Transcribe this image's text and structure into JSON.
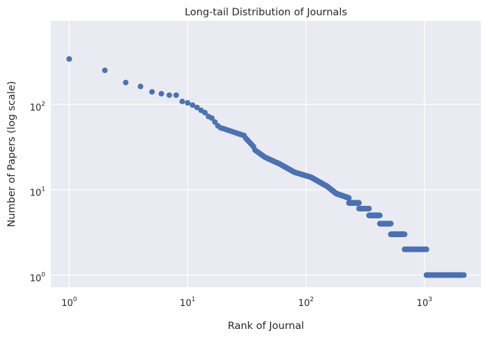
{
  "chart_data": {
    "type": "scatter",
    "title": "Long-tail Distribution of Journals",
    "xlabel": "Rank of Journal",
    "ylabel": "Number of Papers (log scale)",
    "x_scale": "log",
    "y_scale": "log",
    "xlim": [
      0.7,
      3000
    ],
    "ylim": [
      0.72,
      950
    ],
    "x_ticks": [
      {
        "base": "10",
        "exp": "0",
        "value": 1
      },
      {
        "base": "10",
        "exp": "1",
        "value": 10
      },
      {
        "base": "10",
        "exp": "2",
        "value": 100
      },
      {
        "base": "10",
        "exp": "3",
        "value": 1000
      }
    ],
    "y_ticks": [
      {
        "base": "10",
        "exp": "0",
        "value": 1
      },
      {
        "base": "10",
        "exp": "1",
        "value": 10
      },
      {
        "base": "10",
        "exp": "2",
        "value": 100
      }
    ],
    "grid": true,
    "point_color": "#4c72b0",
    "background_color": "#eaeaf2",
    "points": [
      [
        1,
        340
      ],
      [
        2,
        250
      ],
      [
        3,
        180
      ],
      [
        4,
        162
      ],
      [
        5,
        140
      ],
      [
        6,
        133
      ],
      [
        7,
        128
      ],
      [
        8,
        128
      ],
      [
        9,
        108
      ],
      [
        10,
        104
      ],
      [
        11,
        98
      ],
      [
        12,
        92
      ],
      [
        13,
        85
      ],
      [
        14,
        80
      ],
      [
        15,
        72
      ],
      [
        16,
        69
      ],
      [
        17,
        62
      ],
      [
        18,
        56
      ],
      [
        19,
        53
      ],
      [
        20,
        52
      ]
    ],
    "segments": [
      {
        "from_rank": 20,
        "to_rank": 30,
        "from_value": 52,
        "to_value": 43
      },
      {
        "from_rank": 30,
        "to_rank": 36,
        "from_value": 42,
        "to_value": 32
      },
      {
        "from_rank": 36,
        "to_rank": 45,
        "from_value": 30,
        "to_value": 24
      },
      {
        "from_rank": 45,
        "to_rank": 60,
        "from_value": 24,
        "to_value": 20
      },
      {
        "from_rank": 60,
        "to_rank": 80,
        "from_value": 20,
        "to_value": 16
      },
      {
        "from_rank": 80,
        "to_rank": 110,
        "from_value": 16,
        "to_value": 14
      },
      {
        "from_rank": 110,
        "to_rank": 150,
        "from_value": 14,
        "to_value": 11
      },
      {
        "from_rank": 150,
        "to_rank": 180,
        "from_value": 11,
        "to_value": 9
      },
      {
        "from_rank": 180,
        "to_rank": 230,
        "from_value": 9,
        "to_value": 8
      }
    ],
    "plateaus": [
      {
        "value": 7,
        "from_rank": 230,
        "to_rank": 280
      },
      {
        "value": 6,
        "from_rank": 280,
        "to_rank": 340
      },
      {
        "value": 5,
        "from_rank": 340,
        "to_rank": 420
      },
      {
        "value": 4,
        "from_rank": 420,
        "to_rank": 520
      },
      {
        "value": 3,
        "from_rank": 520,
        "to_rank": 680
      },
      {
        "value": 2,
        "from_rank": 680,
        "to_rank": 1040
      },
      {
        "value": 1,
        "from_rank": 1040,
        "to_rank": 2150
      }
    ]
  }
}
